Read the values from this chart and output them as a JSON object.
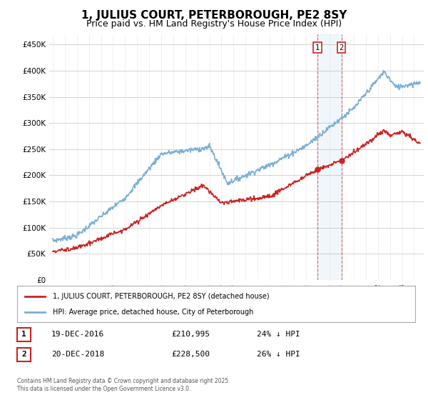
{
  "title": "1, JULIUS COURT, PETERBOROUGH, PE2 8SY",
  "subtitle": "Price paid vs. HM Land Registry's House Price Index (HPI)",
  "title_fontsize": 11,
  "subtitle_fontsize": 9,
  "ylim": [
    0,
    470000
  ],
  "yticks": [
    0,
    50000,
    100000,
    150000,
    200000,
    250000,
    300000,
    350000,
    400000,
    450000
  ],
  "ytick_labels": [
    "£0",
    "£50K",
    "£100K",
    "£150K",
    "£200K",
    "£250K",
    "£300K",
    "£350K",
    "£400K",
    "£450K"
  ],
  "xlim_start": 1994.7,
  "xlim_end": 2025.8,
  "hpi_color": "#7aaed6",
  "price_color": "#cc2222",
  "vline_color": "#cc3333",
  "sale1_x": 2016.96,
  "sale1_y": 210995,
  "sale2_x": 2018.96,
  "sale2_y": 228500,
  "legend_label1": "1, JULIUS COURT, PETERBOROUGH, PE2 8SY (detached house)",
  "legend_label2": "HPI: Average price, detached house, City of Peterborough",
  "footer_text1": "Contains HM Land Registry data © Crown copyright and database right 2025.",
  "footer_text2": "This data is licensed under the Open Government Licence v3.0.",
  "table_row1": [
    "1",
    "19-DEC-2016",
    "£210,995",
    "24% ↓ HPI"
  ],
  "table_row2": [
    "2",
    "20-DEC-2018",
    "£228,500",
    "26% ↓ HPI"
  ],
  "background_color": "#ffffff",
  "grid_color": "#cccccc"
}
